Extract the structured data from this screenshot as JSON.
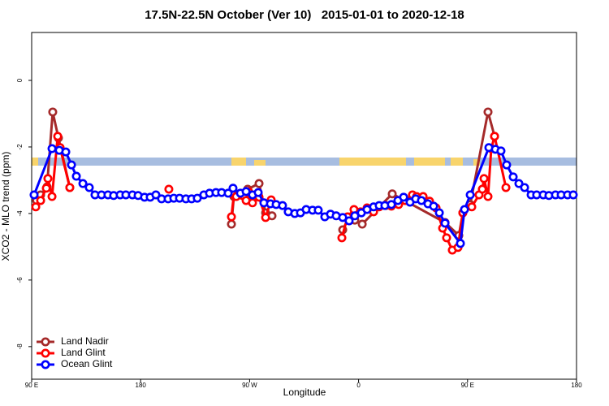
{
  "chart_data": {
    "type": "line",
    "title": "17.5N-22.5N October (Ver 10)   2015-01-01 to 2020-12-18",
    "x_label": "Longitude",
    "y_label": "XCO2 - MLO trend (ppm)",
    "xlim": [
      90,
      540
    ],
    "xticks": [
      {
        "value": 90,
        "label": "90 E"
      },
      180,
      {
        "value": 270,
        "label": "90 W"
      },
      {
        "value": 360,
        "label": "0"
      },
      {
        "value": 450,
        "label": "90 E"
      },
      180
    ],
    "ylim": [
      -8.98,
      1.44
    ],
    "yticks": [
      0,
      -2,
      -4,
      -6,
      -8
    ],
    "legend": "bottom-left",
    "series": [
      {
        "name": "Land Nadir",
        "color": "#a52a2a",
        "x": [
          94.0,
          97.4,
          102.7,
          107.4,
          112.1,
          121.5,
          null,
          255.0,
          257.0,
          268.4,
          277.8,
          283.2,
          288.5,
          null,
          346.9,
          351.6,
          356.9,
          363.0,
          387.8,
          431.4,
          442.8,
          446.1,
          452.2,
          466.9,
          472.3
        ],
        "values": [
          -3.61,
          -3.44,
          -3.2,
          -0.95,
          -1.73,
          -3.22,
          null,
          -4.32,
          -3.49,
          -3.27,
          -3.1,
          -3.98,
          -4.07,
          null,
          -4.49,
          -4.15,
          -4.2,
          -4.32,
          -3.41,
          -4.27,
          -4.66,
          -3.98,
          -3.73,
          -0.95,
          -1.68
        ]
      },
      {
        "name": "Land Glint",
        "color": "#ff0000",
        "x": [
          93.4,
          97.4,
          102.1,
          103.4,
          106.8,
          111.5,
          113.5,
          121.5,
          null,
          203.3,
          null,
          255.0,
          257.0,
          259.0,
          267.1,
          269.1,
          272.4,
          277.8,
          283.2,
          287.8,
          null,
          346.2,
          350.9,
          356.2,
          361.6,
          367.0,
          372.4,
          377.0,
          382.4,
          387.1,
          393.1,
          398.5,
          404.5,
          407.9,
          413.3,
          418.6,
          424.0,
          429.4,
          432.7,
          437.4,
          442.1,
          446.1,
          453.5,
          459.5,
          462.2,
          463.6,
          466.9,
          469.6,
          472.3,
          481.7
        ],
        "values": [
          -3.8,
          -3.61,
          -3.24,
          -2.95,
          -3.49,
          -1.68,
          -2.02,
          -3.22,
          null,
          -3.27,
          null,
          -4.1,
          -3.44,
          -3.49,
          -3.61,
          -3.34,
          -3.68,
          -3.51,
          -4.12,
          -3.59,
          null,
          -4.73,
          -4.1,
          -3.88,
          -3.95,
          -3.83,
          -3.95,
          -3.8,
          -3.76,
          -3.78,
          -3.73,
          -3.61,
          -3.44,
          -3.49,
          -3.49,
          -3.63,
          -3.83,
          -4.44,
          -4.73,
          -5.1,
          -5.02,
          -3.98,
          -3.8,
          -3.44,
          -3.27,
          -2.95,
          -3.49,
          -2.05,
          -1.68,
          -3.22
        ]
      },
      {
        "name": "Ocean Glint",
        "color": "#0000ff",
        "x": [
          92.0,
          106.8,
          112.8,
          118.2,
          122.9,
          126.9,
          132.3,
          137.6,
          142.3,
          147.7,
          153.0,
          157.7,
          163.1,
          167.8,
          173.2,
          177.9,
          183.2,
          187.9,
          192.6,
          197.3,
          202.7,
          207.4,
          212.1,
          217.4,
          222.1,
          226.8,
          232.2,
          236.9,
          242.2,
          246.9,
          252.3,
          256.3,
          262.4,
          267.1,
          272.4,
          277.1,
          281.8,
          287.2,
          291.9,
          297.2,
          301.9,
          307.3,
          312.0,
          316.7,
          322.0,
          326.7,
          332.1,
          336.8,
          341.5,
          346.9,
          352.2,
          356.9,
          362.3,
          367.0,
          372.4,
          377.0,
          381.7,
          387.1,
          392.5,
          397.2,
          402.5,
          407.2,
          411.9,
          417.3,
          422.0,
          426.7,
          431.4,
          444.1,
          447.5,
          452.2,
          467.6,
          473.0,
          477.6,
          482.3,
          487.7,
          492.4,
          497.1,
          502.5,
          507.1,
          512.5,
          517.2,
          522.6,
          527.3,
          532.6,
          537.3
        ],
        "values": [
          -3.44,
          -2.05,
          -2.1,
          -2.15,
          -2.54,
          -2.88,
          -3.1,
          -3.22,
          -3.44,
          -3.44,
          -3.44,
          -3.46,
          -3.44,
          -3.44,
          -3.44,
          -3.46,
          -3.51,
          -3.51,
          -3.44,
          -3.56,
          -3.56,
          -3.54,
          -3.54,
          -3.56,
          -3.56,
          -3.54,
          -3.44,
          -3.39,
          -3.37,
          -3.37,
          -3.39,
          -3.24,
          -3.39,
          -3.34,
          -3.44,
          -3.37,
          -3.68,
          -3.71,
          -3.73,
          -3.76,
          -3.95,
          -4.0,
          -3.98,
          -3.88,
          -3.9,
          -3.9,
          -4.1,
          -4.02,
          -4.07,
          -4.12,
          -4.22,
          -4.07,
          -3.98,
          -3.88,
          -3.8,
          -3.76,
          -3.76,
          -3.73,
          -3.61,
          -3.51,
          -3.66,
          -3.56,
          -3.61,
          -3.71,
          -3.78,
          -3.98,
          -4.29,
          -4.9,
          -3.88,
          -3.44,
          -2.02,
          -2.07,
          -2.12,
          -2.54,
          -2.9,
          -3.1,
          -3.22,
          -3.44,
          -3.44,
          -3.44,
          -3.46,
          -3.44,
          -3.44,
          -3.44,
          -3.44
        ]
      }
    ]
  }
}
